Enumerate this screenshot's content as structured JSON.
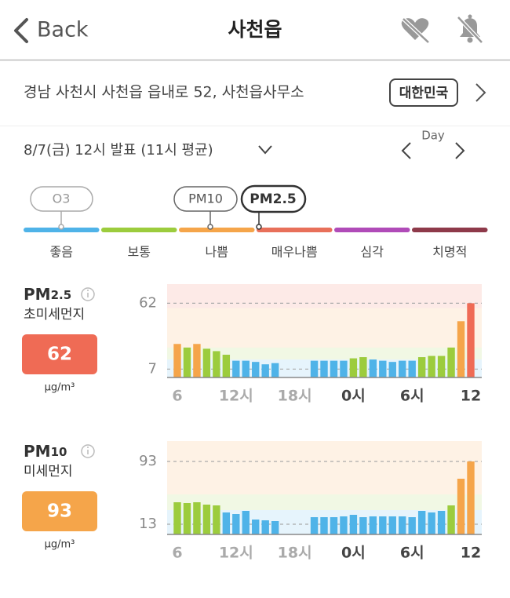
{
  "header": {
    "back": "Back",
    "title": "사천읍"
  },
  "location": {
    "address": "경남 사천시 사천읍 읍내로 52, 사천읍사무소",
    "country": "대한민국"
  },
  "report": {
    "time": "8/7(금) 12시 발표 (11시 평균)",
    "period": "Day"
  },
  "tags": [
    "O3",
    "PM10",
    "PM2.5"
  ],
  "levels": [
    {
      "label": "좋음",
      "color": "#4fb3e8"
    },
    {
      "label": "보통",
      "color": "#9ccc3d"
    },
    {
      "label": "나쁨",
      "color": "#f5a54a"
    },
    {
      "label": "매우나쁨",
      "color": "#e8705a"
    },
    {
      "label": "심각",
      "color": "#b04bb8"
    },
    {
      "label": "치명적",
      "color": "#8e3a4a"
    }
  ],
  "panels": [
    {
      "name": "PM",
      "sub": "2.5",
      "desc": "초미세먼지",
      "value": 62,
      "unit": "μg/m³",
      "chart_data": {
        "type": "bar",
        "categories": [
          "6",
          null,
          null,
          null,
          null,
          null,
          "12시",
          null,
          null,
          null,
          null,
          null,
          "18시",
          null,
          null,
          null,
          null,
          null,
          "0시",
          null,
          null,
          null,
          null,
          null,
          "6시",
          null,
          null,
          null,
          null,
          null,
          "12"
        ],
        "values": [
          28,
          25,
          28,
          24,
          22,
          19,
          14,
          14,
          13,
          11,
          12,
          null,
          null,
          null,
          14,
          14,
          14,
          14,
          16,
          17,
          15,
          14,
          13,
          14,
          14,
          17,
          18,
          18,
          25,
          47,
          62
        ],
        "ylim": [
          0,
          78
        ],
        "yticks": [
          7,
          62
        ],
        "bands": [
          {
            "max": 15,
            "color": "#4fb3e8"
          },
          {
            "max": 25,
            "color": "#9ccc3d"
          },
          {
            "max": 58,
            "color": "#f5a54a"
          },
          {
            "max": 78,
            "color": "#ef6b55"
          }
        ]
      }
    },
    {
      "name": "PM",
      "sub": "10",
      "desc": "미세먼지",
      "value": 93,
      "unit": "μg/m³",
      "chart_data": {
        "type": "bar",
        "categories": [
          "6",
          null,
          null,
          null,
          null,
          null,
          "12시",
          null,
          null,
          null,
          null,
          null,
          "18시",
          null,
          null,
          null,
          null,
          null,
          "0시",
          null,
          null,
          null,
          null,
          null,
          "6시",
          null,
          null,
          null,
          null,
          null,
          "12"
        ],
        "values": [
          41,
          40,
          41,
          38,
          37,
          28,
          26,
          30,
          19,
          18,
          17,
          null,
          null,
          null,
          22,
          22,
          22,
          23,
          25,
          22,
          23,
          23,
          23,
          23,
          22,
          30,
          28,
          30,
          37,
          71,
          93
        ],
        "ylim": [
          0,
          119
        ],
        "yticks": [
          13,
          93
        ],
        "bands": [
          {
            "max": 31,
            "color": "#4fb3e8"
          },
          {
            "max": 51,
            "color": "#9ccc3d"
          },
          {
            "max": 119,
            "color": "#f5a54a"
          }
        ]
      }
    }
  ]
}
